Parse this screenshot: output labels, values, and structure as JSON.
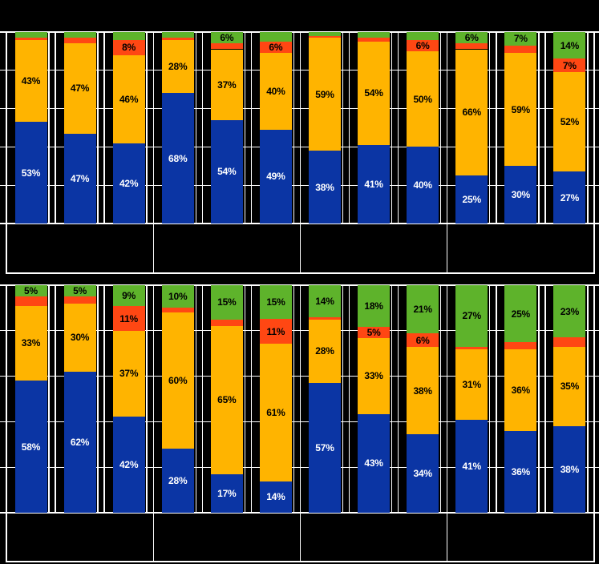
{
  "colors": {
    "background": "#000000",
    "gridline": "#FFFFFF",
    "series": {
      "blue": "#0B35A4",
      "orange": "#FFB400",
      "red": "#FF4713",
      "green": "#5EB32B"
    },
    "label_on_blue": "#FFFFFF",
    "label_on_light": "#000000"
  },
  "chart_data": [
    {
      "type": "bar",
      "stacked": true,
      "panel": "top",
      "ylim": [
        0,
        100
      ],
      "gridlines_pct": [
        0,
        20,
        40,
        60,
        80,
        100
      ],
      "groups": 4,
      "bars_per_group": 3,
      "series_bottom_to_top": [
        "blue",
        "orange",
        "red",
        "green"
      ],
      "bars": [
        {
          "group": 1,
          "values": {
            "blue": 53,
            "orange": 43,
            "red": 1,
            "green": 3
          },
          "labels": {
            "blue": "53%",
            "orange": "43%"
          }
        },
        {
          "group": 1,
          "values": {
            "blue": 47,
            "orange": 47,
            "red": 3,
            "green": 3
          },
          "labels": {
            "blue": "47%",
            "orange": "47%"
          }
        },
        {
          "group": 1,
          "values": {
            "blue": 42,
            "orange": 46,
            "red": 8,
            "green": 4
          },
          "labels": {
            "blue": "42%",
            "orange": "46%",
            "red": "8%"
          }
        },
        {
          "group": 2,
          "values": {
            "blue": 68,
            "orange": 28,
            "red": 1,
            "green": 3
          },
          "labels": {
            "blue": "68%",
            "orange": "28%"
          }
        },
        {
          "group": 2,
          "values": {
            "blue": 54,
            "orange": 37,
            "red": 3,
            "green": 6
          },
          "labels": {
            "blue": "54%",
            "orange": "37%",
            "green": "6%"
          }
        },
        {
          "group": 2,
          "values": {
            "blue": 49,
            "orange": 40,
            "red": 6,
            "green": 5
          },
          "labels": {
            "blue": "49%",
            "orange": "40%",
            "red": "6%"
          }
        },
        {
          "group": 3,
          "values": {
            "blue": 38,
            "orange": 59,
            "red": 1,
            "green": 2
          },
          "labels": {
            "blue": "38%",
            "orange": "59%"
          }
        },
        {
          "group": 3,
          "values": {
            "blue": 41,
            "orange": 54,
            "red": 2,
            "green": 3
          },
          "labels": {
            "blue": "41%",
            "orange": "54%"
          }
        },
        {
          "group": 3,
          "values": {
            "blue": 40,
            "orange": 50,
            "red": 6,
            "green": 4
          },
          "labels": {
            "blue": "40%",
            "orange": "50%",
            "red": "6%"
          }
        },
        {
          "group": 4,
          "values": {
            "blue": 25,
            "orange": 66,
            "red": 3,
            "green": 6
          },
          "labels": {
            "blue": "25%",
            "orange": "66%",
            "green": "6%"
          }
        },
        {
          "group": 4,
          "values": {
            "blue": 30,
            "orange": 59,
            "red": 4,
            "green": 7
          },
          "labels": {
            "blue": "30%",
            "orange": "59%",
            "green": "7%"
          }
        },
        {
          "group": 4,
          "values": {
            "blue": 27,
            "orange": 52,
            "red": 7,
            "green": 14
          },
          "labels": {
            "blue": "27%",
            "orange": "52%",
            "red": "7%",
            "green": "14%"
          }
        }
      ]
    },
    {
      "type": "bar",
      "stacked": true,
      "panel": "bottom",
      "ylim": [
        0,
        100
      ],
      "gridlines_pct": [
        0,
        20,
        40,
        60,
        80,
        100
      ],
      "groups": 4,
      "bars_per_group": 3,
      "series_bottom_to_top": [
        "blue",
        "orange",
        "red",
        "green"
      ],
      "bars": [
        {
          "group": 1,
          "values": {
            "blue": 58,
            "orange": 33,
            "red": 4,
            "green": 5
          },
          "labels": {
            "blue": "58%",
            "orange": "33%",
            "green": "5%"
          }
        },
        {
          "group": 1,
          "values": {
            "blue": 62,
            "orange": 30,
            "red": 3,
            "green": 5
          },
          "labels": {
            "blue": "62%",
            "orange": "30%",
            "green": "5%"
          }
        },
        {
          "group": 1,
          "values": {
            "blue": 42,
            "orange": 37,
            "red": 11,
            "green": 9
          },
          "labels": {
            "blue": "42%",
            "orange": "37%",
            "red": "11%",
            "green": "9%"
          }
        },
        {
          "group": 2,
          "values": {
            "blue": 28,
            "orange": 60,
            "red": 2,
            "green": 10
          },
          "labels": {
            "blue": "28%",
            "orange": "60%",
            "green": "10%"
          }
        },
        {
          "group": 2,
          "values": {
            "blue": 17,
            "orange": 65,
            "red": 3,
            "green": 15
          },
          "labels": {
            "blue": "17%",
            "orange": "65%",
            "green": "15%"
          }
        },
        {
          "group": 2,
          "values": {
            "blue": 14,
            "orange": 61,
            "red": 11,
            "green": 15
          },
          "labels": {
            "blue": "14%",
            "orange": "61%",
            "red": "11%",
            "green": "15%"
          }
        },
        {
          "group": 3,
          "values": {
            "blue": 57,
            "orange": 28,
            "red": 1,
            "green": 14
          },
          "labels": {
            "blue": "57%",
            "orange": "28%",
            "green": "14%"
          }
        },
        {
          "group": 3,
          "values": {
            "blue": 43,
            "orange": 33,
            "red": 5,
            "green": 18
          },
          "labels": {
            "blue": "43%",
            "orange": "33%",
            "red": "5%",
            "green": "18%"
          }
        },
        {
          "group": 3,
          "values": {
            "blue": 34,
            "orange": 38,
            "red": 6,
            "green": 21
          },
          "labels": {
            "blue": "34%",
            "orange": "38%",
            "red": "6%",
            "green": "21%"
          }
        },
        {
          "group": 4,
          "values": {
            "blue": 41,
            "orange": 31,
            "red": 1,
            "green": 27
          },
          "labels": {
            "blue": "41%",
            "orange": "31%",
            "green": "27%"
          }
        },
        {
          "group": 4,
          "values": {
            "blue": 36,
            "orange": 36,
            "red": 3,
            "green": 25
          },
          "labels": {
            "blue": "36%",
            "orange": "36%",
            "green": "25%"
          }
        },
        {
          "group": 4,
          "values": {
            "blue": 38,
            "orange": 35,
            "red": 4,
            "green": 23
          },
          "labels": {
            "blue": "38%",
            "orange": "35%",
            "green": "23%"
          }
        }
      ]
    }
  ]
}
